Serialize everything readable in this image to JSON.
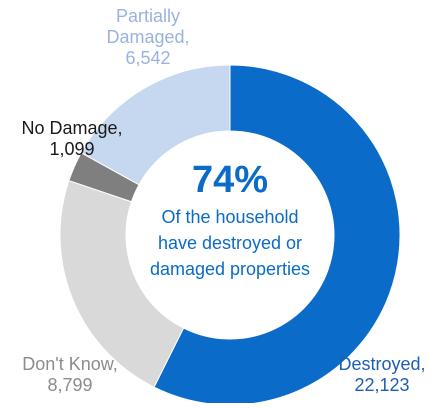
{
  "chart_data": {
    "type": "pie",
    "variant": "donut",
    "categories": [
      "Destroyed",
      "Don't Know",
      "No Damage",
      "Partially Damaged"
    ],
    "values": [
      22123,
      8799,
      1099,
      6542
    ],
    "colors": [
      "#0a6bc9",
      "#d9d9d9",
      "#7f7f7f",
      "#c6d7f0"
    ],
    "label_colors": [
      "#1f5fb0",
      "#8c8c8c",
      "#1a1a1a",
      "#9ab3de"
    ],
    "labels": [
      [
        "Destroyed,",
        "22,123"
      ],
      [
        "Don't Know,",
        "8,799"
      ],
      [
        "No Damage,",
        "1,099"
      ],
      [
        "Partially",
        "Damaged,",
        "6,542"
      ]
    ],
    "label_anchor": [
      "middle",
      "middle",
      "middle",
      "middle"
    ],
    "center": {
      "headline": "74%",
      "lines": [
        "Of the household",
        "have destroyed or",
        "damaged properties"
      ],
      "color": "#0a6bc9"
    },
    "start_angle_deg": 0,
    "direction": "clockwise",
    "legend": "none"
  }
}
